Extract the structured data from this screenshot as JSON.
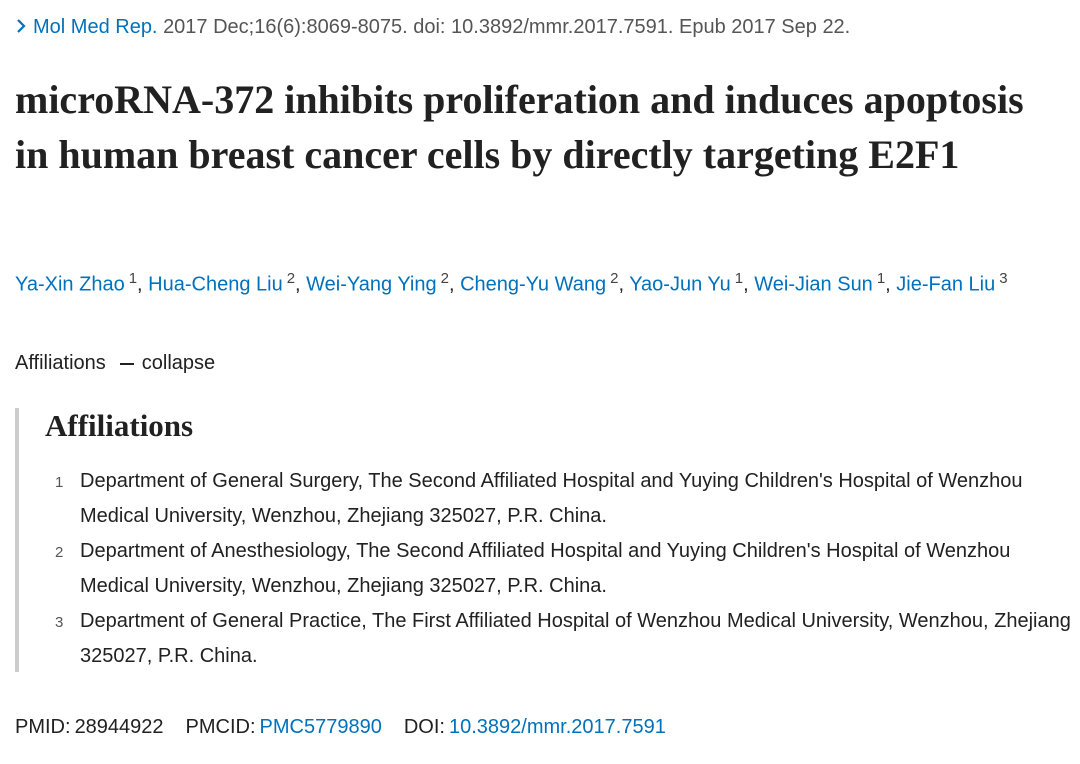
{
  "citation": {
    "journal": "Mol Med Rep.",
    "details": "2017 Dec;16(6):8069-8075. doi: 10.3892/mmr.2017.7591. Epub 2017 Sep 22."
  },
  "title": "microRNA-372 inhibits proliferation and induces apoptosis in human breast cancer cells by directly targeting E2F1",
  "author_separator": ",",
  "authors": [
    {
      "name": "Ya-Xin Zhao",
      "aff": "1"
    },
    {
      "name": "Hua-Cheng Liu",
      "aff": "2"
    },
    {
      "name": "Wei-Yang Ying",
      "aff": "2"
    },
    {
      "name": "Cheng-Yu Wang",
      "aff": "2"
    },
    {
      "name": "Yao-Jun Yu",
      "aff": "1"
    },
    {
      "name": "Wei-Jian Sun",
      "aff": "1"
    },
    {
      "name": "Jie-Fan Liu",
      "aff": "3"
    }
  ],
  "affiliations_toggle": {
    "label": "Affiliations",
    "action": "collapse"
  },
  "affiliations": {
    "heading": "Affiliations",
    "items": [
      {
        "num": "1",
        "text": "Department of General Surgery, The Second Affiliated Hospital and Yuying Children's Hospital of Wenzhou Medical University, Wenzhou, Zhejiang 325027, P.R. China."
      },
      {
        "num": "2",
        "text": "Department of Anesthesiology, The Second Affiliated Hospital and Yuying Children's Hospital of Wenzhou Medical University, Wenzhou, Zhejiang 325027, P.R. China."
      },
      {
        "num": "3",
        "text": "Department of General Practice, The First Affiliated Hospital of Wenzhou Medical University, Wenzhou, Zhejiang 325027, P.R. China."
      }
    ]
  },
  "identifiers": {
    "pmid_label": "PMID:",
    "pmid": "28944922",
    "pmcid_label": "PMCID:",
    "pmcid": "PMC5779890",
    "doi_label": "DOI:",
    "doi": "10.3892/mmr.2017.7591"
  }
}
